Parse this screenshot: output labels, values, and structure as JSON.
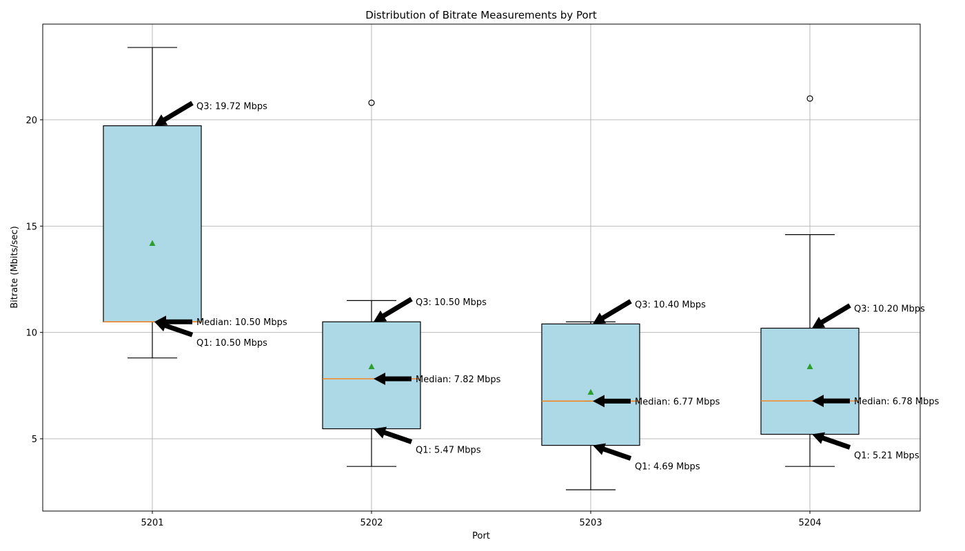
{
  "chart_data": {
    "type": "box",
    "title": "Distribution of Bitrate Measurements by Port",
    "xlabel": "Port",
    "ylabel": "Bitrate (Mbits/sec)",
    "ylim": [
      1.6,
      24.5
    ],
    "yticks": [
      5,
      10,
      15,
      20
    ],
    "grid": true,
    "colors": {
      "box_fill": "#add8e6",
      "median": "#ff7f0e",
      "mean": "#2ca02c"
    },
    "categories": [
      "5201",
      "5202",
      "5203",
      "5204"
    ],
    "boxes": [
      {
        "label": "5201",
        "whisker_low": 8.8,
        "q1": 10.5,
        "median": 10.5,
        "q3": 19.72,
        "whisker_high": 23.4,
        "mean": 14.2,
        "outliers": [],
        "annotations": {
          "q3": "Q3: 19.72 Mbps",
          "median": "Median: 10.50 Mbps",
          "q1": "Q1: 10.50 Mbps"
        }
      },
      {
        "label": "5202",
        "whisker_low": 3.7,
        "q1": 5.47,
        "median": 7.82,
        "q3": 10.5,
        "whisker_high": 11.5,
        "mean": 8.4,
        "outliers": [
          20.8
        ],
        "annotations": {
          "q3": "Q3: 10.50 Mbps",
          "median": "Median: 7.82 Mbps",
          "q1": "Q1: 5.47 Mbps"
        }
      },
      {
        "label": "5203",
        "whisker_low": 2.6,
        "q1": 4.69,
        "median": 6.77,
        "q3": 10.4,
        "whisker_high": 10.5,
        "mean": 7.2,
        "outliers": [],
        "annotations": {
          "q3": "Q3: 10.40 Mbps",
          "median": "Median: 6.77 Mbps",
          "q1": "Q1: 4.69 Mbps"
        }
      },
      {
        "label": "5204",
        "whisker_low": 3.7,
        "q1": 5.21,
        "median": 6.78,
        "q3": 10.2,
        "whisker_high": 14.6,
        "mean": 8.4,
        "outliers": [
          21.0
        ],
        "annotations": {
          "q3": "Q3: 10.20 Mbps",
          "median": "Median: 6.78 Mbps",
          "q1": "Q1: 5.21 Mbps"
        }
      }
    ]
  }
}
